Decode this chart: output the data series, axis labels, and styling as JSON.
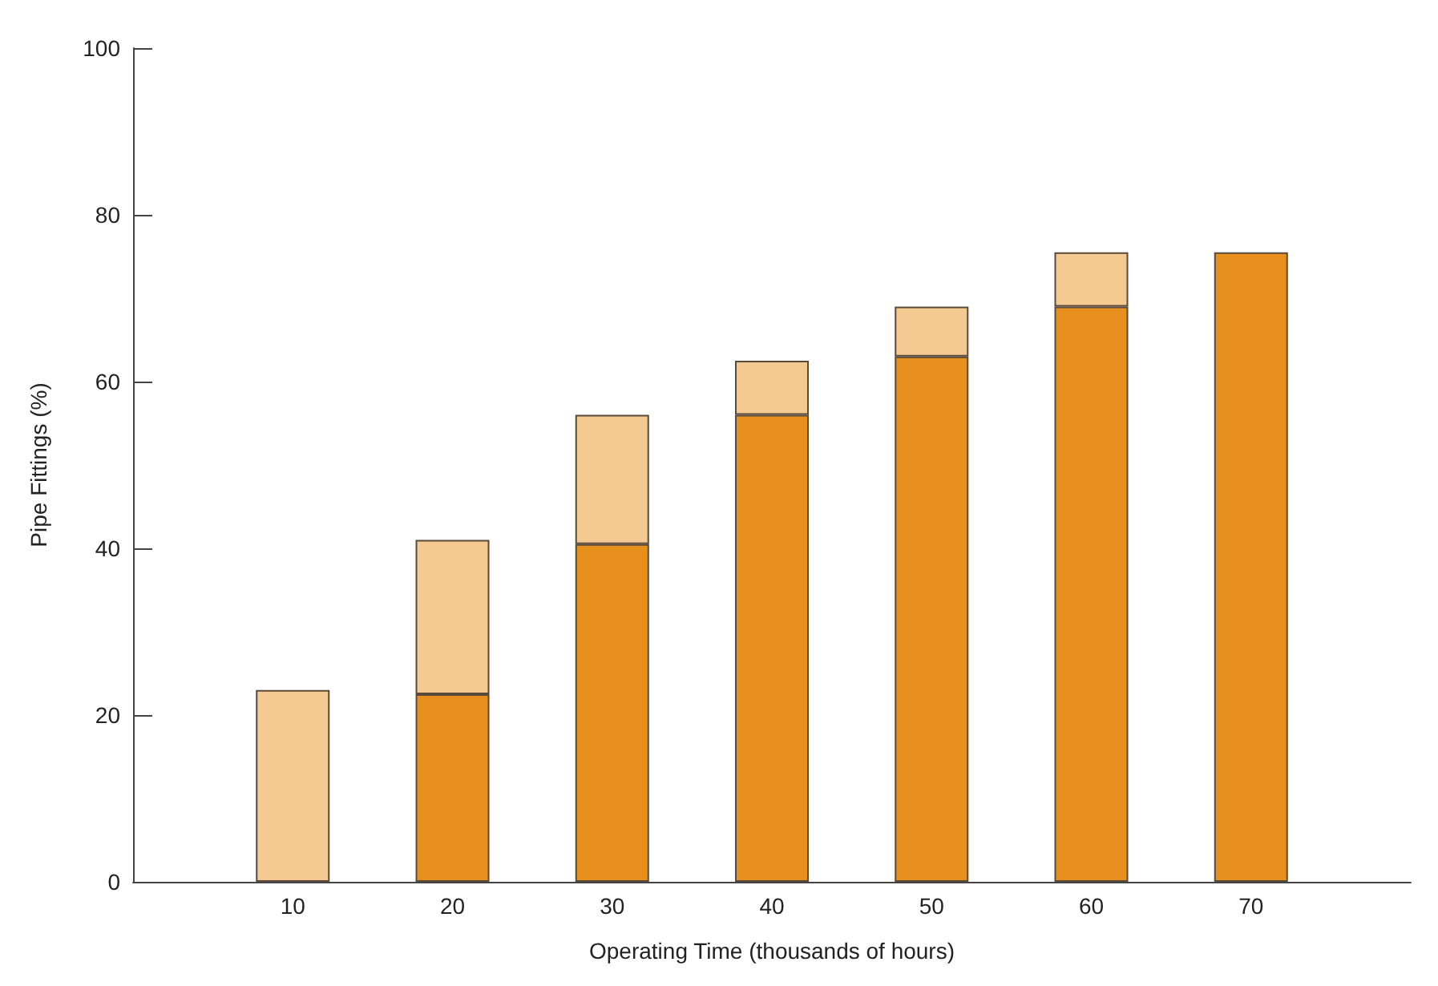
{
  "chart_data": {
    "type": "bar",
    "stacked": true,
    "xlabel": "Operating Time (thousands of hours)",
    "ylabel": "Pipe Fittings (%)",
    "categories": [
      "10",
      "20",
      "30",
      "40",
      "50",
      "60",
      "70"
    ],
    "series": [
      {
        "color": "#e8901e",
        "values": [
          null,
          22.5,
          40.5,
          56,
          63,
          69,
          75.5
        ]
      },
      {
        "color": "#f5c992",
        "values": [
          23,
          18.5,
          15.5,
          6.5,
          6,
          6.5,
          null
        ]
      }
    ],
    "ylim": [
      0,
      100
    ],
    "yticks": [
      0,
      20,
      40,
      60,
      80,
      100
    ],
    "grid": false
  }
}
